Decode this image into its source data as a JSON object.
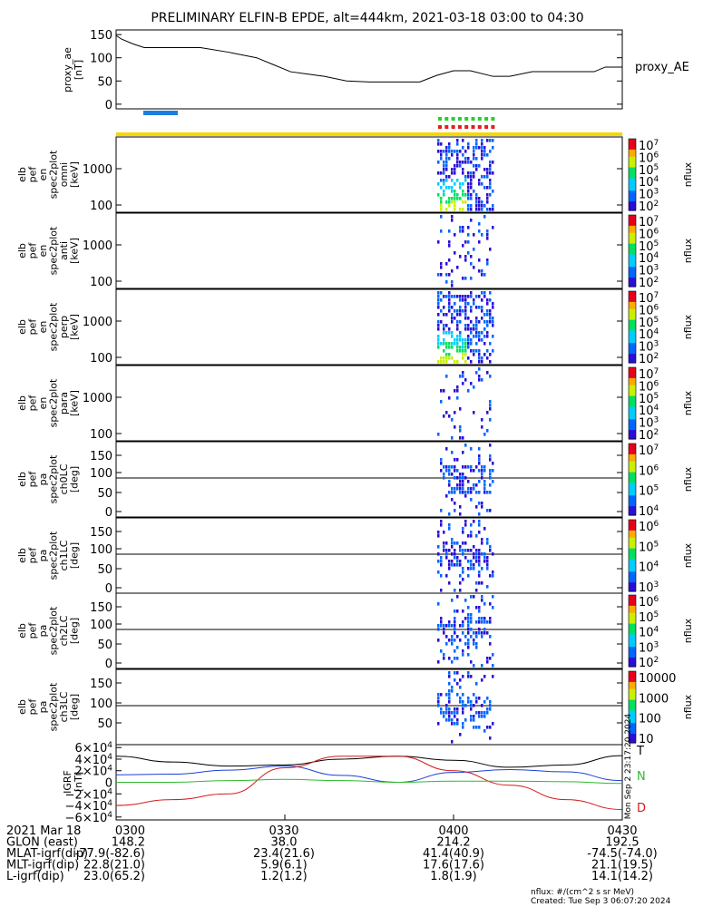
{
  "title": "PRELIMINARY ELFIN-B EPDE, alt=444km, 2021-03-18 03:00 to 04:30",
  "colors": {
    "bar_blue": "#1a7fe0",
    "marker_green": "#22d22a",
    "marker_red": "#e0201a",
    "orbit_bar_yellow": "#f5d800",
    "dark_spec": "#2a0a4a",
    "line_black": "#000000",
    "line_blue": "#1f3fd6",
    "line_green": "#2fb92f",
    "line_red": "#d21a1a"
  },
  "chart_data": [
    {
      "type": "line",
      "name": "proxy_ae",
      "ylabel": "proxy_ae",
      "yunit": "[nT]",
      "legend": "proxy_AE",
      "yticks": [
        "150",
        "100",
        "50",
        "0"
      ],
      "ylim": [
        -10,
        160
      ],
      "xlim": [
        0,
        90
      ],
      "x": [
        0,
        1,
        3,
        5,
        8,
        15,
        20,
        25,
        28,
        31,
        34,
        37,
        41,
        45,
        50,
        54,
        57,
        60,
        63,
        67,
        70,
        74,
        78,
        82,
        85,
        87,
        90
      ],
      "y": [
        148,
        140,
        130,
        122,
        122,
        122,
        112,
        100,
        85,
        70,
        65,
        60,
        50,
        48,
        48,
        48,
        62,
        72,
        72,
        60,
        60,
        70,
        70,
        70,
        70,
        80,
        80
      ]
    },
    {
      "type": "heatmap",
      "name": "spec-omni",
      "ylabel": [
        "elb",
        "pef",
        "en",
        "spec2plot",
        "omni",
        "[keV]"
      ],
      "yticks": [
        "1000",
        "100"
      ],
      "zlabel": "nflux",
      "zticks": [
        "10^7",
        "10^6",
        "10^5",
        "10^4",
        "10^3",
        "10^2"
      ]
    },
    {
      "type": "heatmap",
      "name": "spec-anti",
      "ylabel": [
        "elb",
        "pef",
        "en",
        "spec2plot",
        "anti",
        "[keV]"
      ],
      "yticks": [
        "1000",
        "100"
      ],
      "zlabel": "nflux",
      "zticks": [
        "10^7",
        "10^6",
        "10^5",
        "10^4",
        "10^3",
        "10^2"
      ]
    },
    {
      "type": "heatmap",
      "name": "spec-perp",
      "ylabel": [
        "elb",
        "pef",
        "en",
        "spec2plot",
        "perp",
        "[keV]"
      ],
      "yticks": [
        "1000",
        "100"
      ],
      "zlabel": "nflux",
      "zticks": [
        "10^7",
        "10^6",
        "10^5",
        "10^4",
        "10^3",
        "10^2"
      ]
    },
    {
      "type": "heatmap",
      "name": "spec-para",
      "ylabel": [
        "elb",
        "pef",
        "en",
        "spec2plot",
        "para",
        "[keV]"
      ],
      "yticks": [
        "1000",
        "100"
      ],
      "zlabel": "nflux",
      "zticks": [
        "10^7",
        "10^6",
        "10^5",
        "10^4",
        "10^3",
        "10^2"
      ]
    },
    {
      "type": "heatmap",
      "name": "pa-ch0LC",
      "ylabel": [
        "elb",
        "pef",
        "pa",
        "spec2plot",
        "ch0LC",
        "[deg]"
      ],
      "yticks": [
        "150",
        "100",
        "50",
        "0"
      ],
      "zlabel": "nflux",
      "zticks": [
        "10^7",
        "10^6",
        "10^5",
        "10^4"
      ]
    },
    {
      "type": "heatmap",
      "name": "pa-ch1LC",
      "ylabel": [
        "elb",
        "pef",
        "pa",
        "spec2plot",
        "ch1LC",
        "[deg]"
      ],
      "yticks": [
        "150",
        "100",
        "50",
        "0"
      ],
      "zlabel": "nflux",
      "zticks": [
        "10^6",
        "10^5",
        "10^4",
        "10^3"
      ]
    },
    {
      "type": "heatmap",
      "name": "pa-ch2LC",
      "ylabel": [
        "elb",
        "pef",
        "pa",
        "spec2plot",
        "ch2LC",
        "[deg]"
      ],
      "yticks": [
        "150",
        "100",
        "50",
        "0"
      ],
      "zlabel": "nflux",
      "zticks": [
        "10^6",
        "10^5",
        "10^4",
        "10^3",
        "10^2"
      ]
    },
    {
      "type": "heatmap",
      "name": "pa-ch3LC",
      "ylabel": [
        "elb",
        "pef",
        "pa",
        "spec2plot",
        "ch3LC",
        "[deg]"
      ],
      "yticks": [
        "150",
        "100",
        "50"
      ],
      "zlabel": "nflux",
      "zticks": [
        "10000",
        "1000",
        "100",
        "10"
      ]
    },
    {
      "type": "line",
      "name": "igrf",
      "ylabel": "IGRF",
      "yunit": "[nT]",
      "yticks": [
        "6×10^4",
        "4×10^4",
        "2×10^4",
        "0",
        "−2×10^4",
        "−4×10^4",
        "−6×10^4"
      ],
      "ylim": [
        -65000,
        65000
      ],
      "xlim": [
        0,
        90
      ],
      "series": [
        {
          "name": "T",
          "x": [
            0,
            10,
            20,
            30,
            40,
            50,
            60,
            70,
            80,
            90
          ],
          "y": [
            45000,
            35000,
            28000,
            30000,
            40000,
            45000,
            38000,
            26000,
            30000,
            46000
          ]
        },
        {
          "name": "N",
          "x": [
            0,
            10,
            20,
            30,
            40,
            50,
            60,
            70,
            80,
            90
          ],
          "y": [
            13000,
            14000,
            21000,
            28000,
            12000,
            0,
            17000,
            22000,
            18000,
            3000
          ]
        },
        {
          "name": "D",
          "x": [
            0,
            10,
            20,
            30,
            40,
            50,
            60,
            70,
            80,
            90
          ],
          "y": [
            -40000,
            -30000,
            -20000,
            25000,
            45000,
            45000,
            20000,
            -5000,
            -30000,
            -47000
          ]
        },
        {
          "name": "",
          "x": [
            0,
            10,
            20,
            30,
            40,
            50,
            60,
            70,
            80,
            90
          ],
          "y": [
            0,
            0,
            3000,
            5000,
            3000,
            0,
            2000,
            2000,
            1000,
            -2000
          ]
        }
      ],
      "side_labels": [
        "T",
        "N",
        "D"
      ]
    }
  ],
  "footer": {
    "columns": [
      "0300",
      "0330",
      "0400",
      "0430"
    ],
    "rows": [
      {
        "label": "2021 Mar 18",
        "values": [
          "0300",
          "0330",
          "0400",
          "0430"
        ]
      },
      {
        "label": "GLON (east)",
        "values": [
          "148.2",
          "38.0",
          "214.2",
          "192.5"
        ]
      },
      {
        "label": "MLAT-igrf(dip)",
        "values": [
          "-77.9(-82.6)",
          "23.4(21.6)",
          "41.4(40.9)",
          "-74.5(-74.0)"
        ]
      },
      {
        "label": "MLT-igrf(dip)",
        "values": [
          "22.8(21.0)",
          "5.9(6.1)",
          "17.6(17.6)",
          "21.1(19.5)"
        ]
      },
      {
        "label": "L-igrf(dip)",
        "values": [
          "23.0(65.2)",
          "1.2(1.2)",
          "1.8(1.9)",
          "14.1(14.2)"
        ]
      }
    ],
    "units_note": "nflux: #/(cm^2 s sr MeV)",
    "created": "Created: Tue Sep  3 06:07:20 2024",
    "vertical_stamp": "Mon Sep  2 23:17:20 2024"
  }
}
